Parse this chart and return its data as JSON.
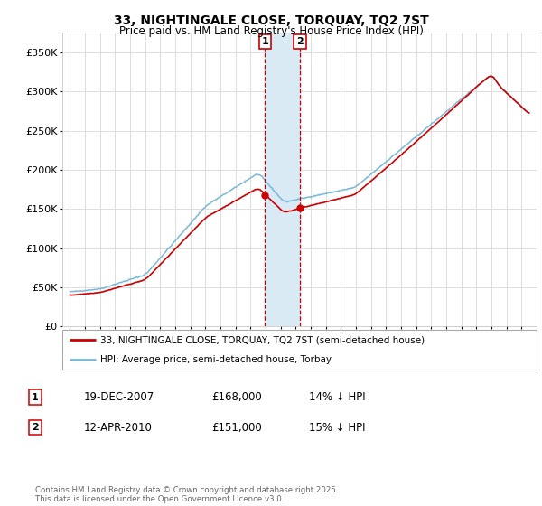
{
  "title": "33, NIGHTINGALE CLOSE, TORQUAY, TQ2 7ST",
  "subtitle": "Price paid vs. HM Land Registry's House Price Index (HPI)",
  "legend_line1": "33, NIGHTINGALE CLOSE, TORQUAY, TQ2 7ST (semi-detached house)",
  "legend_line2": "HPI: Average price, semi-detached house, Torbay",
  "footnote": "Contains HM Land Registry data © Crown copyright and database right 2025.\nThis data is licensed under the Open Government Licence v3.0.",
  "transaction1_label": "1",
  "transaction1_date": "19-DEC-2007",
  "transaction1_price": "£168,000",
  "transaction1_hpi": "14% ↓ HPI",
  "transaction2_label": "2",
  "transaction2_date": "12-APR-2010",
  "transaction2_price": "£151,000",
  "transaction2_hpi": "15% ↓ HPI",
  "transaction1_x": 2007.96,
  "transaction2_x": 2010.28,
  "ylim": [
    0,
    375000
  ],
  "yticks": [
    0,
    50000,
    100000,
    150000,
    200000,
    250000,
    300000,
    350000
  ],
  "hpi_color": "#7ab8d9",
  "price_color": "#cc0000",
  "vline_color": "#cc0000",
  "shade_color": "#daeaf5",
  "background_color": "#ffffff",
  "grid_color": "#dddddd",
  "xlim_left": 1994.5,
  "xlim_right": 2026.0
}
